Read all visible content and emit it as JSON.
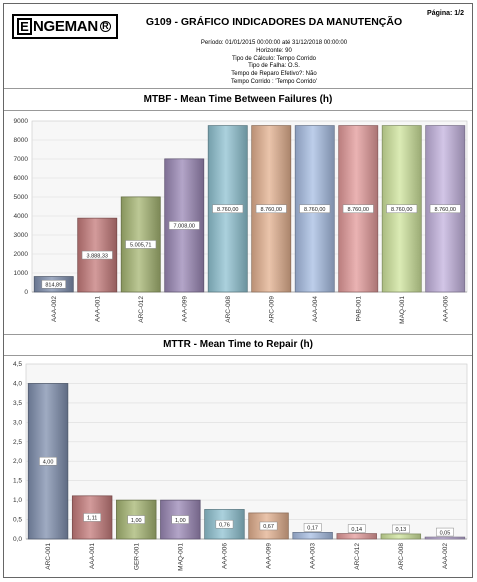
{
  "header": {
    "logo_text": "ENGEMAN",
    "title": "G109 - GRÁFICO INDICADORES DA MANUTENÇÃO",
    "page": "Página: 1/2",
    "meta": [
      "Período: 01/01/2015 00:00:00  até  31/12/2018 00:00:00",
      "Horizonte: 90",
      "Tipo de Cálculo: Tempo Corrido",
      "Tipo de Falha: O.S.",
      "Tempo de Reparo Efetivo?: Não",
      "Tempo Corrido : 'Tempo Corrido'"
    ]
  },
  "chart_data": [
    {
      "type": "bar",
      "title": "MTBF - Mean Time Between Failures (h)",
      "categories": [
        "AAA-002",
        "AAA-001",
        "ARC-012",
        "AAA-099",
        "ARC-008",
        "ARC-009",
        "AAA-004",
        "PAB-001",
        "MAQ-001",
        "AAA-006"
      ],
      "values": [
        814.89,
        3888.33,
        5005.71,
        7008.0,
        8760.0,
        8760.0,
        8760.0,
        8760.0,
        8760.0,
        8760.0
      ],
      "value_labels": [
        "814,89",
        "3.888,33",
        "5.005,71",
        "7.008,00",
        "8.760,00",
        "8.760,00",
        "8.760,00",
        "8.760,00",
        "8.760,00",
        "8.760,00"
      ],
      "ylim": [
        0,
        9000
      ],
      "yticks": [
        0,
        1000,
        2000,
        3000,
        4000,
        5000,
        6000,
        7000,
        8000,
        9000
      ],
      "ytick_labels": [
        "0",
        "1000",
        "2000",
        "3000",
        "4000",
        "5000",
        "6000",
        "7000",
        "8000",
        "9000"
      ],
      "grid": true,
      "colors": [
        "#7f8fae",
        "#c47a7a",
        "#a5b572",
        "#9a87b5",
        "#8fc2d1",
        "#e3b08f",
        "#a7bde3",
        "#e39a9a",
        "#cfe49c",
        "#c3b2de"
      ]
    },
    {
      "type": "bar",
      "title": "MTTR - Mean Time to Repair (h)",
      "categories": [
        "ARC-001",
        "AAA-001",
        "GER-001",
        "MAQ-001",
        "AAA-006",
        "AAA-099",
        "AAA-003",
        "ARC-012",
        "ARC-008",
        "AAA-002"
      ],
      "values": [
        4.0,
        1.11,
        1.0,
        1.0,
        0.76,
        0.67,
        0.17,
        0.14,
        0.13,
        0.05
      ],
      "value_labels": [
        "4,00",
        "1,11",
        "1,00",
        "1,00",
        "0,76",
        "0,67",
        "0,17",
        "0,14",
        "0,13",
        "0,05"
      ],
      "ylim": [
        0,
        4.5
      ],
      "yticks": [
        0,
        0.5,
        1,
        1.5,
        2,
        2.5,
        3,
        3.5,
        4,
        4.5
      ],
      "ytick_labels": [
        "0,0",
        "0,5",
        "1,0",
        "1,5",
        "2,0",
        "2,5",
        "3,0",
        "3,5",
        "4,0",
        "4,5"
      ],
      "grid": true,
      "colors": [
        "#7f8fae",
        "#c47a7a",
        "#a5b572",
        "#9a87b5",
        "#8fc2d1",
        "#e3b08f",
        "#a7bde3",
        "#e39a9a",
        "#cfe49c",
        "#c3b2de"
      ]
    }
  ]
}
